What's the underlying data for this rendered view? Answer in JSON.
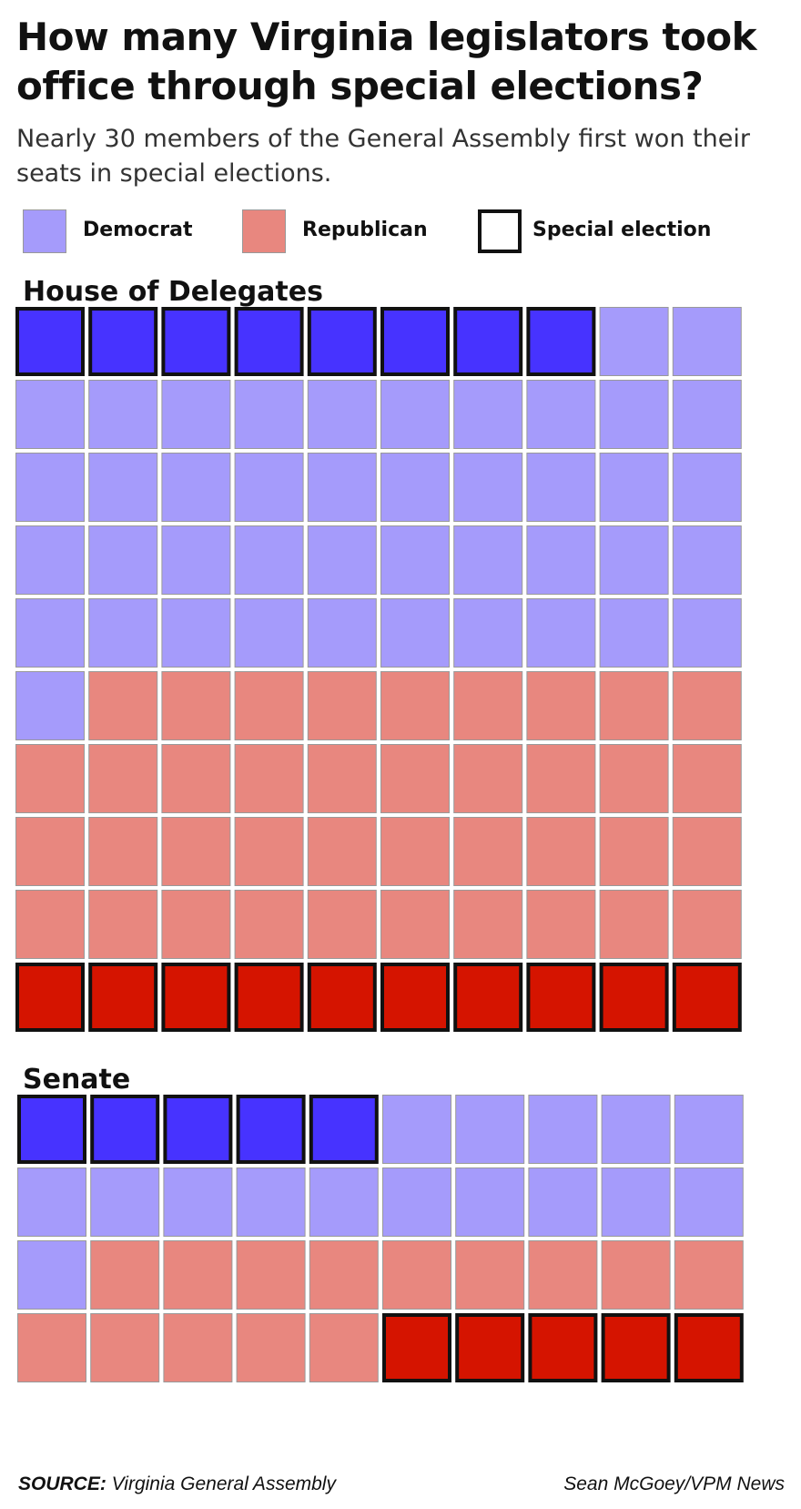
{
  "title": "How many Virginia legislators took office through special elections?",
  "subtitle": "Nearly 30 members of the General Assembly first won their seats in special elections.",
  "legend": {
    "democrat": "Democrat",
    "republican": "Republican",
    "special": "Special election"
  },
  "colors": {
    "democrat": "#A59BFB",
    "republican": "#E8877F",
    "democrat_special": "#4733FF",
    "republican_special": "#D51400",
    "special_border": "#111111",
    "grid_border": "#999999"
  },
  "chart_data": [
    {
      "type": "waffle",
      "title": "House of Delegates",
      "columns": 10,
      "total": 100,
      "series": [
        {
          "name": "Democrat",
          "values": {
            "special_election": 8,
            "other": 43
          }
        },
        {
          "name": "Republican",
          "values": {
            "special_election": 10,
            "other": 39
          }
        }
      ]
    },
    {
      "type": "waffle",
      "title": "Senate",
      "columns": 10,
      "total": 40,
      "series": [
        {
          "name": "Democrat",
          "values": {
            "special_election": 5,
            "other": 16
          }
        },
        {
          "name": "Republican",
          "values": {
            "special_election": 5,
            "other": 14
          }
        }
      ]
    }
  ],
  "footer": {
    "source_label": "SOURCE:",
    "source_text": " Virginia General Assembly",
    "credit": "Sean McGoey/VPM News"
  }
}
